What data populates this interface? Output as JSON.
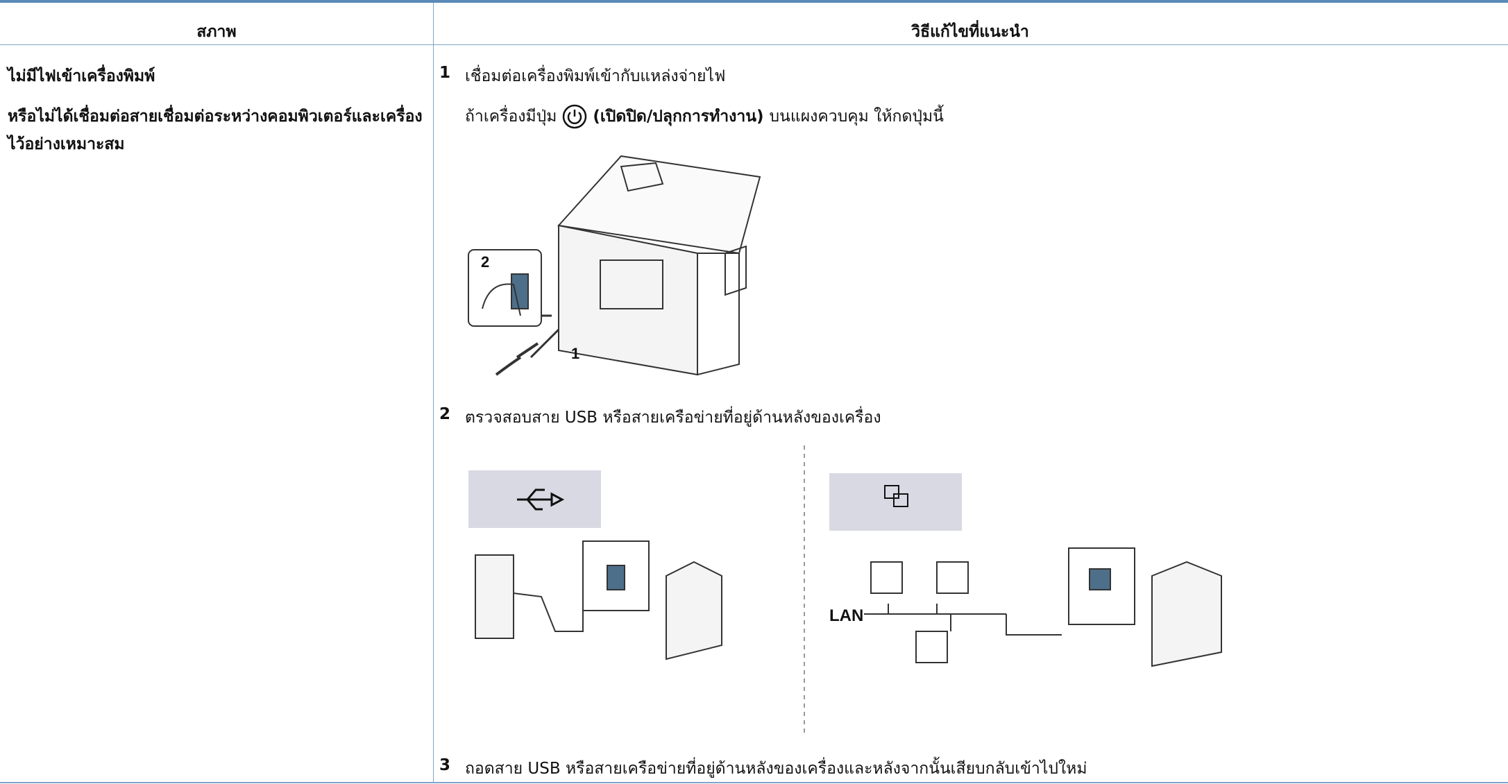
{
  "table": {
    "headers": [
      "สภาพ",
      "วิธีแก้ไขที่แนะนำ"
    ],
    "condition": [
      "ไม่มีไฟเข้าเครื่องพิมพ์",
      "หรือไม่ได้เชื่อมต่อสายเชื่อมต่อระหว่างคอมพิวเตอร์และเครื่องไว้อย่างเหมาะสม"
    ],
    "steps": [
      {
        "number": "1",
        "text": "เชื่อมต่อเครื่องพิมพ์เข้ากับแหล่งจ่ายไฟ",
        "note": {
          "before": "ถ้าเครื่องมีปุ่ม",
          "bold": "(เปิดปิด/ปลุกการทำงาน)",
          "after": "บนแผงควบคุม ให้กดปุ่มนี้"
        },
        "figure_labels": [
          "2",
          "1"
        ]
      },
      {
        "number": "2",
        "text": "ตรวจสอบสาย USB หรือสายเครือข่ายที่อยู่ด้านหลังของเครื่อง",
        "figure_labels": [
          "LAN"
        ]
      },
      {
        "number": "3",
        "text": "ถอดสาย USB หรือสายเครือข่ายที่อยู่ด้านหลังของเครื่องและหลังจากนั้นเสียบกลับเข้าไปใหม่"
      }
    ]
  }
}
